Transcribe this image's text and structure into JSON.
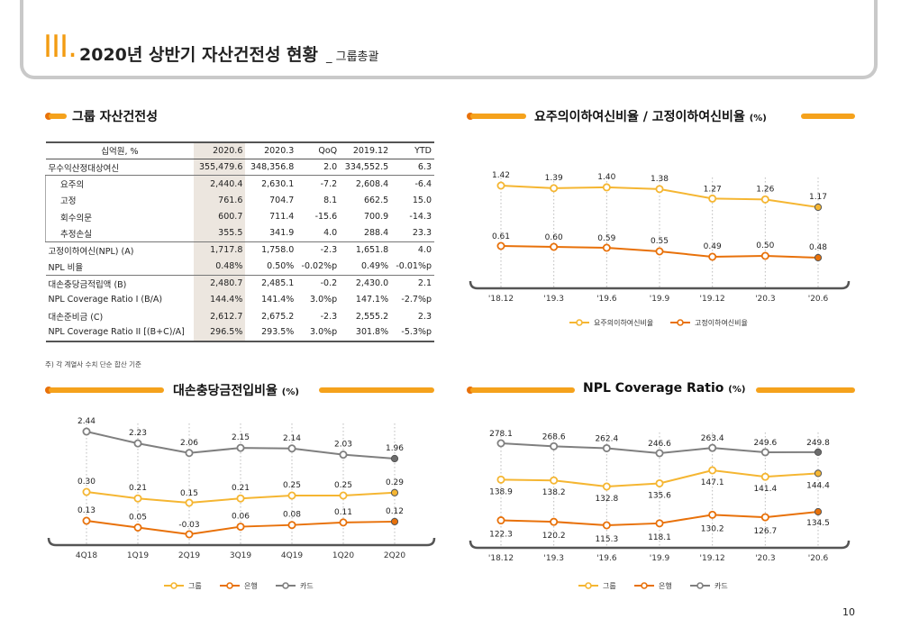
{
  "header": {
    "roman": "III.",
    "title": "2020년 상반기 자산건전성 현황",
    "subtitle": "_ 그룹총괄"
  },
  "page_number": "10",
  "colors": {
    "accent": "#f5a21c",
    "orange": "#e8710a",
    "yellow": "#f5b632",
    "gray": "#7f7f7f"
  },
  "table_section": {
    "title": "그룹 자산건전성",
    "columns": [
      "십억원, %",
      "2020.6",
      "2020.3",
      "QoQ",
      "2019.12",
      "YTD"
    ],
    "rows": [
      [
        "무수익산정대상여신",
        "355,479.6",
        "348,356.8",
        "2.0",
        "334,552.5",
        "6.3"
      ],
      [
        "요주의",
        "2,440.4",
        "2,630.1",
        "-7.2",
        "2,608.4",
        "-6.4"
      ],
      [
        "고정",
        "761.6",
        "704.7",
        "8.1",
        "662.5",
        "15.0"
      ],
      [
        "회수의문",
        "600.7",
        "711.4",
        "-15.6",
        "700.9",
        "-14.3"
      ],
      [
        "추정손실",
        "355.5",
        "341.9",
        "4.0",
        "288.4",
        "23.3"
      ],
      [
        "고정이하여신(NPL) (A)",
        "1,717.8",
        "1,758.0",
        "-2.3",
        "1,651.8",
        "4.0"
      ],
      [
        "NPL 비율",
        "0.48%",
        "0.50%",
        "-0.02%p",
        "0.49%",
        "-0.01%p"
      ],
      [
        "대손충당금적립액 (B)",
        "2,480.7",
        "2,485.1",
        "-0.2",
        "2,430.0",
        "2.1"
      ],
      [
        "NPL Coverage Ratio I (B/A)",
        "144.4%",
        "141.4%",
        "3.0%p",
        "147.1%",
        "-2.7%p"
      ],
      [
        "대손준비금 (C)",
        "2,612.7",
        "2,675.2",
        "-2.3",
        "2,555.2",
        "2.3"
      ],
      [
        "NPL Coverage Ratio II [(B+C)/A]",
        "296.5%",
        "293.5%",
        "3.0%p",
        "301.8%",
        "-5.3%p"
      ]
    ],
    "footnote": "주) 각 계열사 수치 단순 합산 기준"
  },
  "chart_data": [
    {
      "type": "line",
      "title": "요주의이하여신비율 / 고정이하여신비율",
      "title_unit": "(%)",
      "categories": [
        "'18.12",
        "'19.3",
        "'19.6",
        "'19.9",
        "'19.12",
        "'20.3",
        "'20.6"
      ],
      "series": [
        {
          "name": "요주의이하여신비율",
          "values": [
            1.42,
            1.39,
            1.4,
            1.38,
            1.27,
            1.26,
            1.17
          ],
          "labels": [
            "1.42",
            "1.39",
            "1.40",
            "1.38",
            "1.27",
            "1.26",
            "1.17"
          ],
          "color": "#f5b632"
        },
        {
          "name": "고정이하여신비율",
          "values": [
            0.61,
            0.6,
            0.59,
            0.55,
            0.49,
            0.5,
            0.48
          ],
          "labels": [
            "0.61",
            "0.60",
            "0.59",
            "0.55",
            "0.49",
            "0.50",
            "0.48"
          ],
          "color": "#e8710a"
        }
      ]
    },
    {
      "type": "line",
      "title": "대손충당금전입비율",
      "title_unit": "(%)",
      "categories": [
        "4Q18",
        "1Q19",
        "2Q19",
        "3Q19",
        "4Q19",
        "1Q20",
        "2Q20"
      ],
      "series": [
        {
          "name": "카드",
          "values": [
            2.44,
            2.23,
            2.06,
            2.15,
            2.14,
            2.03,
            1.96
          ],
          "labels": [
            "2.44",
            "2.23",
            "2.06",
            "2.15",
            "2.14",
            "2.03",
            "1.96"
          ],
          "color": "#7f7f7f"
        },
        {
          "name": "그룹",
          "values": [
            0.3,
            0.21,
            0.15,
            0.21,
            0.25,
            0.25,
            0.29
          ],
          "labels": [
            "0.30",
            "0.21",
            "0.15",
            "0.21",
            "0.25",
            "0.25",
            "0.29"
          ],
          "color": "#f5b632"
        },
        {
          "name": "은행",
          "values": [
            0.13,
            0.05,
            -0.03,
            0.06,
            0.08,
            0.11,
            0.12
          ],
          "labels": [
            "0.13",
            "0.05",
            "-0.03",
            "0.06",
            "0.08",
            "0.11",
            "0.12"
          ],
          "color": "#e8710a"
        }
      ],
      "legend": [
        "그룹",
        "은행",
        "카드"
      ]
    },
    {
      "type": "line",
      "title": "NPL Coverage Ratio",
      "title_unit": "(%)",
      "categories": [
        "'18.12",
        "'19.3",
        "'19.6",
        "'19.9",
        "'19.12",
        "'20.3",
        "'20.6"
      ],
      "series": [
        {
          "name": "카드",
          "values": [
            278.1,
            268.6,
            262.4,
            246.6,
            263.4,
            249.6,
            249.8
          ],
          "labels": [
            "278.1",
            "268.6",
            "262.4",
            "246.6",
            "263.4",
            "249.6",
            "249.8"
          ],
          "color": "#7f7f7f"
        },
        {
          "name": "그룹",
          "values": [
            138.9,
            138.2,
            132.8,
            135.6,
            147.1,
            141.4,
            144.4
          ],
          "labels": [
            "138.9",
            "138.2",
            "132.8",
            "135.6",
            "147.1",
            "141.4",
            "144.4"
          ],
          "color": "#f5b632"
        },
        {
          "name": "은행",
          "values": [
            122.3,
            120.2,
            115.3,
            118.1,
            130.2,
            126.7,
            134.5
          ],
          "labels": [
            "122.3",
            "120.2",
            "115.3",
            "118.1",
            "130.2",
            "126.7",
            "134.5"
          ],
          "color": "#e8710a"
        }
      ],
      "legend": [
        "그룹",
        "은행",
        "카드"
      ]
    }
  ]
}
